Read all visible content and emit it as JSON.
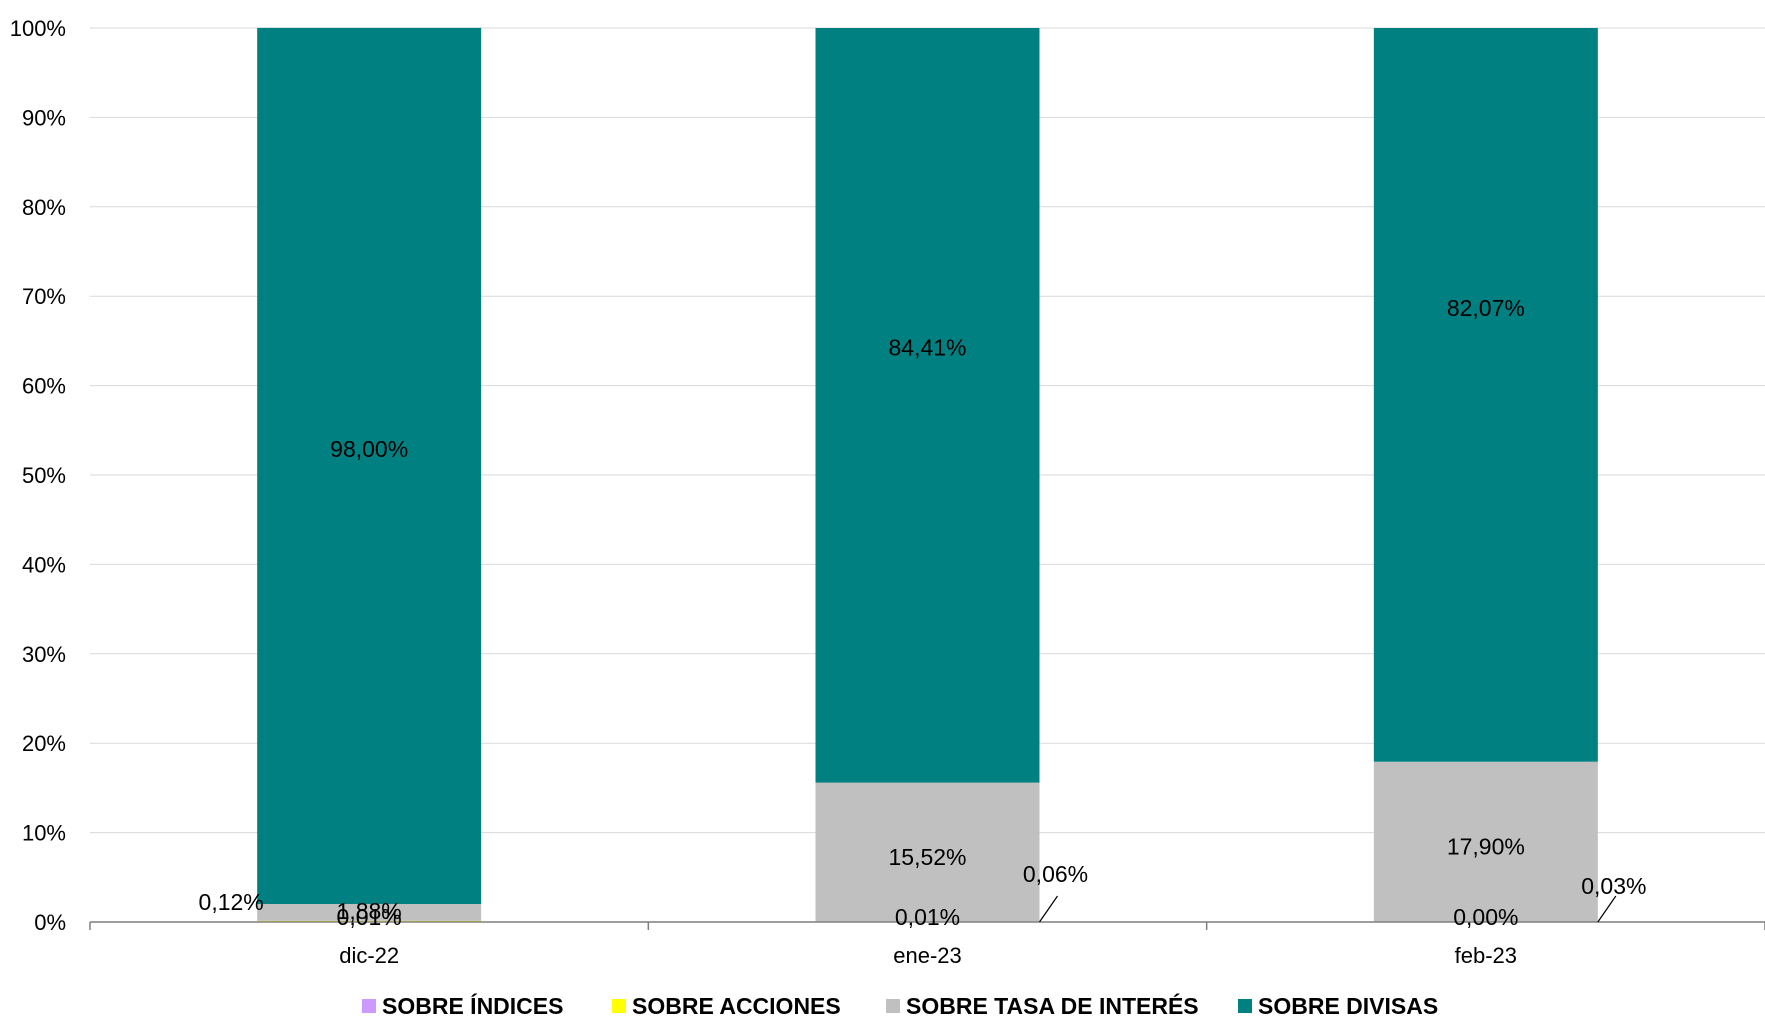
{
  "chart_data": {
    "type": "bar",
    "stacked": true,
    "normalized": true,
    "categories": [
      "dic-22",
      "ene-23",
      "feb-23"
    ],
    "ylim": [
      0,
      100
    ],
    "yticks": [
      "0%",
      "10%",
      "20%",
      "30%",
      "40%",
      "50%",
      "60%",
      "70%",
      "80%",
      "90%",
      "100%"
    ],
    "grid": true,
    "legend_position": "bottom",
    "series": [
      {
        "name": "SOBRE  ÍNDICES",
        "color": "#cc99ff",
        "values": [
          0.01,
          0.01,
          0.0
        ],
        "labels": [
          "0,01%",
          "0,01%",
          "0,00%"
        ]
      },
      {
        "name": "SOBRE ACCIONES",
        "color": "#ffff00",
        "values": [
          0.12,
          0.06,
          0.03
        ],
        "labels": [
          "0,12%",
          "0,06%",
          "0,03%"
        ]
      },
      {
        "name": "SOBRE TASA DE INTERÉS",
        "color": "#c0c0c0",
        "values": [
          1.88,
          15.52,
          17.9
        ],
        "labels": [
          "1,88%",
          "15,52%",
          "17,90%"
        ]
      },
      {
        "name": "SOBRE  DIVISAS",
        "color": "#008080",
        "values": [
          98.0,
          84.41,
          82.07
        ],
        "labels": [
          "98,00%",
          "84,41%",
          "82,07%"
        ]
      }
    ]
  }
}
